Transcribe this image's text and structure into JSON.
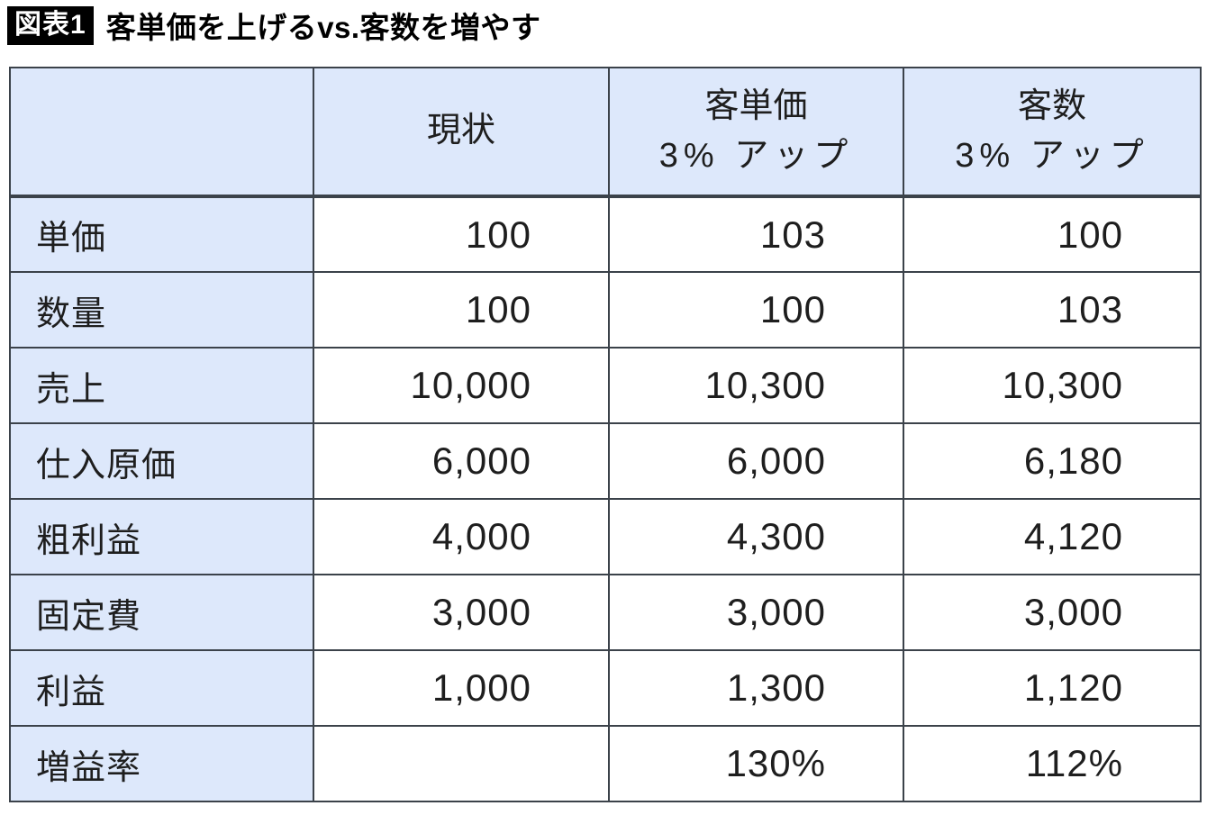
{
  "figure": {
    "badge": "図表1",
    "title": "客単価を上げるvs.客数を増やす"
  },
  "colors": {
    "badge_bg": "#000000",
    "badge_text": "#ffffff",
    "cell_fill_blue": "#dde8fb",
    "cell_fill_white": "#ffffff",
    "border": "#3b424a",
    "text": "#1e1e1e"
  },
  "chart_data": {
    "type": "table",
    "title": "客単価を上げるvs.客数を増やす",
    "badge": "図表1",
    "header": {
      "col0": "",
      "col1": "現状",
      "col2_line1": "客単価",
      "col2_line2": "3% アップ",
      "col3_line1": "客数",
      "col3_line2": "3% アップ"
    },
    "columns": [
      "",
      "現状",
      "客単価 3%アップ",
      "客数 3%アップ"
    ],
    "rows": [
      {
        "label": "単価",
        "values": [
          "100",
          "103",
          "100"
        ]
      },
      {
        "label": "数量",
        "values": [
          "100",
          "100",
          "103"
        ]
      },
      {
        "label": "売上",
        "values": [
          "10,000",
          "10,300",
          "10,300"
        ]
      },
      {
        "label": "仕入原価",
        "values": [
          "6,000",
          "6,000",
          "6,180"
        ]
      },
      {
        "label": "粗利益",
        "values": [
          "4,000",
          "4,300",
          "4,120"
        ]
      },
      {
        "label": "固定費",
        "values": [
          "3,000",
          "3,000",
          "3,000"
        ]
      },
      {
        "label": "利益",
        "values": [
          "1,000",
          "1,300",
          "1,120"
        ]
      },
      {
        "label": "増益率",
        "values": [
          "",
          "130%",
          "112%"
        ]
      }
    ],
    "layout": {
      "header_fill": "#dde8fb",
      "label_column_fill": "#dde8fb",
      "value_alignment": "right",
      "grid": true
    }
  }
}
